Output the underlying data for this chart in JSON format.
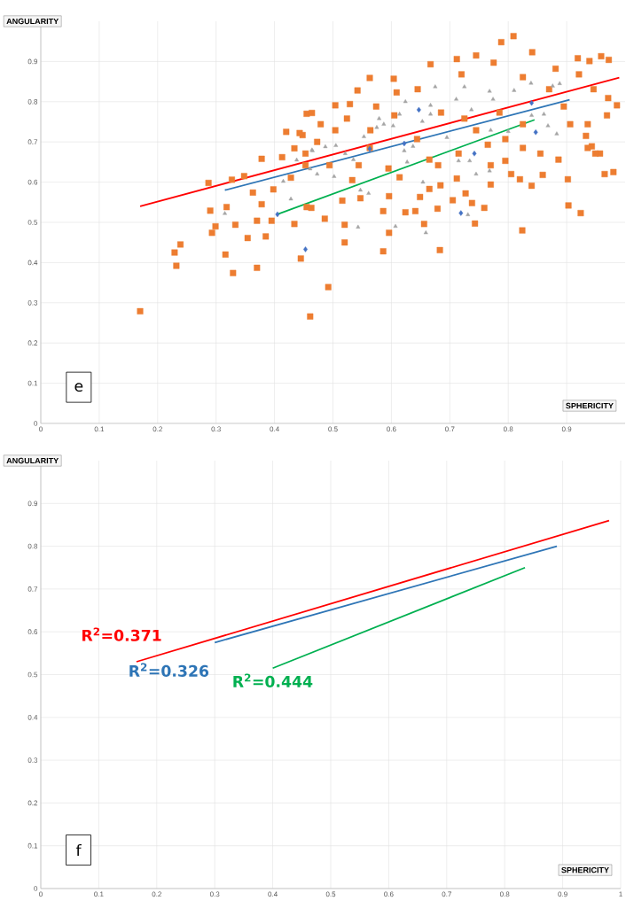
{
  "chart_data": [
    {
      "type": "scatter",
      "xlabel": "SPHERICITY",
      "ylabel": "ANGULARITY",
      "xlim": [
        0,
        1
      ],
      "ylim": [
        0,
        1
      ],
      "xticks": [
        0,
        0.1,
        0.2,
        0.3,
        0.4,
        0.5,
        0.6,
        0.7,
        0.8,
        0.9
      ],
      "yticks": [
        0,
        0.1,
        0.2,
        0.3,
        0.4,
        0.5,
        0.6,
        0.7,
        0.8,
        0.9
      ],
      "grid": true,
      "annotations": [
        "e"
      ],
      "series": [
        {
          "type": "scatter",
          "marker": "square",
          "color": "#ed7d31",
          "x": [
            0.17,
            0.229,
            0.239,
            0.232,
            0.293,
            0.299,
            0.29,
            0.287,
            0.316,
            0.329,
            0.37,
            0.354,
            0.385,
            0.333,
            0.37,
            0.395,
            0.434,
            0.445,
            0.42,
            0.455,
            0.327,
            0.318,
            0.348,
            0.378,
            0.413,
            0.448,
            0.434,
            0.363,
            0.398,
            0.428,
            0.378,
            0.455,
            0.492,
            0.461,
            0.52,
            0.52,
            0.586,
            0.596,
            0.586,
            0.624,
            0.641,
            0.656,
            0.683,
            0.679,
            0.705,
            0.743,
            0.738,
            0.759,
            0.727,
            0.824,
            0.903,
            0.924,
            0.902,
            0.859,
            0.84,
            0.82,
            0.77,
            0.712,
            0.684,
            0.649,
            0.596,
            0.547,
            0.516,
            0.486,
            0.463,
            0.965,
            0.98,
            0.957,
            0.943,
            0.933,
            0.986,
            0.969,
            0.972,
            0.959,
            0.939,
            0.919,
            0.881,
            0.841,
            0.809,
            0.788,
            0.745,
            0.712,
            0.667,
            0.604,
            0.563,
            0.542,
            0.464,
            0.443,
            0.504,
            0.574,
            0.645,
            0.72,
            0.775,
            0.825,
            0.87,
            0.921,
            0.946,
            0.971,
            0.479,
            0.524,
            0.564,
            0.605,
            0.685,
            0.725,
            0.785,
            0.825,
            0.906,
            0.936,
            0.895,
            0.745,
            0.795,
            0.825,
            0.855,
            0.886,
            0.936,
            0.949,
            0.765,
            0.715,
            0.665,
            0.595,
            0.544,
            0.494,
            0.453,
            0.644,
            0.563,
            0.473,
            0.665,
            0.614,
            0.533,
            0.68,
            0.77,
            0.795,
            0.805,
            0.504,
            0.453,
            0.609,
            0.529
          ],
          "values": [
            0.279,
            0.425,
            0.445,
            0.392,
            0.474,
            0.49,
            0.529,
            0.598,
            0.42,
            0.374,
            0.387,
            0.461,
            0.465,
            0.494,
            0.504,
            0.504,
            0.496,
            0.41,
            0.725,
            0.77,
            0.606,
            0.538,
            0.615,
            0.658,
            0.662,
            0.717,
            0.684,
            0.574,
            0.582,
            0.611,
            0.545,
            0.538,
            0.339,
            0.266,
            0.45,
            0.494,
            0.428,
            0.474,
            0.528,
            0.525,
            0.528,
            0.496,
            0.431,
            0.534,
            0.555,
            0.497,
            0.548,
            0.536,
            0.572,
            0.48,
            0.542,
            0.523,
            0.607,
            0.618,
            0.591,
            0.607,
            0.594,
            0.609,
            0.592,
            0.563,
            0.565,
            0.56,
            0.554,
            0.509,
            0.536,
            0.62,
            0.625,
            0.671,
            0.689,
            0.715,
            0.791,
            0.766,
            0.904,
            0.913,
            0.901,
            0.908,
            0.882,
            0.923,
            0.963,
            0.948,
            0.915,
            0.906,
            0.893,
            0.857,
            0.859,
            0.828,
            0.772,
            0.722,
            0.791,
            0.788,
            0.831,
            0.868,
            0.897,
            0.861,
            0.831,
            0.868,
            0.831,
            0.809,
            0.744,
            0.758,
            0.729,
            0.766,
            0.773,
            0.758,
            0.773,
            0.744,
            0.744,
            0.744,
            0.788,
            0.729,
            0.707,
            0.685,
            0.671,
            0.656,
            0.685,
            0.671,
            0.693,
            0.671,
            0.656,
            0.634,
            0.642,
            0.642,
            0.642,
            0.707,
            0.685,
            0.7,
            0.583,
            0.612,
            0.605,
            0.642,
            0.642,
            0.653,
            0.62,
            0.729,
            0.671,
            0.823,
            0.794
          ]
        },
        {
          "type": "scatter",
          "marker": "triangle",
          "color": "#a5a5a5",
          "x": [
            0.675,
            0.725,
            0.711,
            0.768,
            0.774,
            0.81,
            0.839,
            0.876,
            0.888,
            0.624,
            0.614,
            0.667,
            0.667,
            0.653,
            0.603,
            0.587,
            0.575,
            0.579,
            0.553,
            0.505,
            0.487,
            0.464,
            0.637,
            0.622,
            0.695,
            0.737,
            0.77,
            0.8,
            0.84,
            0.861,
            0.868,
            0.883,
            0.715,
            0.734,
            0.627,
            0.768,
            0.745,
            0.654,
            0.473,
            0.502,
            0.547,
            0.561,
            0.543,
            0.607,
            0.659,
            0.731,
            0.521,
            0.535,
            0.315,
            0.415,
            0.428,
            0.465,
            0.438,
            0.461
          ],
          "values": [
            0.837,
            0.837,
            0.806,
            0.826,
            0.806,
            0.828,
            0.846,
            0.839,
            0.845,
            0.8,
            0.769,
            0.791,
            0.769,
            0.751,
            0.74,
            0.744,
            0.736,
            0.758,
            0.713,
            0.691,
            0.688,
            0.68,
            0.689,
            0.678,
            0.711,
            0.78,
            0.729,
            0.726,
            0.766,
            0.769,
            0.74,
            0.72,
            0.653,
            0.653,
            0.65,
            0.628,
            0.62,
            0.6,
            0.62,
            0.614,
            0.58,
            0.572,
            0.488,
            0.49,
            0.474,
            0.519,
            0.671,
            0.656,
            0.522,
            0.602,
            0.558,
            0.678,
            0.655,
            0.633
          ]
        },
        {
          "type": "scatter",
          "marker": "diamond",
          "color": "#4472c4",
          "x": [
            0.405,
            0.453,
            0.647,
            0.563,
            0.622,
            0.742,
            0.719,
            0.84,
            0.847
          ],
          "values": [
            0.52,
            0.433,
            0.78,
            0.683,
            0.696,
            0.671,
            0.523,
            0.797,
            0.724
          ]
        },
        {
          "type": "line",
          "color": "#ff0000",
          "x": [
            0.17,
            0.99
          ],
          "values": [
            0.54,
            0.86
          ]
        },
        {
          "type": "line",
          "color": "#2e75b6",
          "x": [
            0.315,
            0.905
          ],
          "values": [
            0.58,
            0.805
          ]
        },
        {
          "type": "line",
          "color": "#00b050",
          "x": [
            0.405,
            0.845
          ],
          "values": [
            0.52,
            0.755
          ]
        }
      ]
    },
    {
      "type": "line",
      "xlabel": "SPHERICITY",
      "ylabel": "ANGULARITY",
      "xlim": [
        0,
        1
      ],
      "ylim": [
        0,
        1
      ],
      "xticks": [
        0,
        0.1,
        0.2,
        0.3,
        0.4,
        0.5,
        0.6,
        0.7,
        0.8,
        0.9,
        1
      ],
      "yticks": [
        0,
        0.1,
        0.2,
        0.3,
        0.4,
        0.5,
        0.6,
        0.7,
        0.8,
        0.9
      ],
      "grid": true,
      "annotations": [
        "f",
        "R$^{2}$=0.371",
        "R$^{2}$=0.326",
        "R$^{2}$=0.444"
      ],
      "series": [
        {
          "color": "#ff0000",
          "x": [
            0.165,
            0.98
          ],
          "values": [
            0.53,
            0.86
          ]
        },
        {
          "color": "#2e75b6",
          "x": [
            0.3,
            0.89
          ],
          "values": [
            0.575,
            0.8
          ]
        },
        {
          "color": "#00b050",
          "x": [
            0.4,
            0.835
          ],
          "values": [
            0.515,
            0.75
          ]
        }
      ]
    }
  ]
}
